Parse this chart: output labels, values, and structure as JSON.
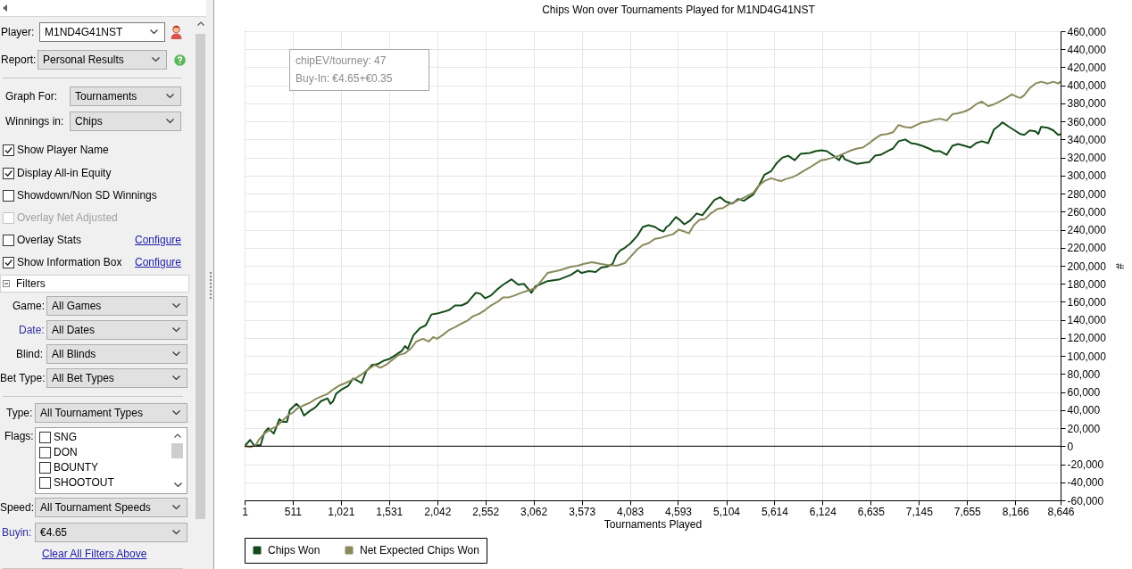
{
  "chart_data": [
    {
      "type": "other",
      "annotations": [
        "Player:",
        "M1ND4G41NST",
        "Report:",
        "Personal Results",
        "Graph For:",
        "Tournaments",
        "Winnings in:",
        "Chips",
        "Show Player Name",
        "Display All-in Equity",
        "Showdown/Non SD Winnings",
        "Overlay Net Adjusted",
        "Overlay Stats",
        "Configure",
        "Show Information Box",
        "Configure",
        "Filters",
        "Game:",
        "All Games",
        "Date:",
        "All Dates",
        "Blind:",
        "All Blinds",
        "Bet Type:",
        "All Bet Types",
        "Type:",
        "All Tournament Types",
        "Flags:",
        "SNG",
        "DON",
        "BOUNTY",
        "SHOOTOUT",
        "Speed:",
        "All Tournament Speeds",
        "Buyin:",
        "€4.65",
        "Clear All Filters Above"
      ]
    },
    {
      "type": "line",
      "title": "Chips Won over Tournaments Played for M1ND4G41NST",
      "xlabel": "Tournaments Played",
      "ylabel": "#",
      "annotations": [
        "chipEV/tourney: 47",
        "Buy-In: €4.65+€0.35"
      ],
      "xlim": [
        1,
        8646
      ],
      "xticks": [
        1,
        511,
        {
          "value": 1021,
          "label": "1,021"
        },
        {
          "value": 1531,
          "label": "1,531"
        },
        {
          "value": 2042,
          "label": "2,042"
        },
        {
          "value": 2552,
          "label": "2,552"
        },
        {
          "value": 3062,
          "label": "3,062"
        },
        {
          "value": 3573,
          "label": "3,573"
        },
        {
          "value": 4083,
          "label": "4,083"
        },
        {
          "value": 4593,
          "label": "4,593"
        },
        {
          "value": 5104,
          "label": "5,104"
        },
        {
          "value": 5614,
          "label": "5,614"
        },
        {
          "value": 6124,
          "label": "6,124"
        },
        {
          "value": 6635,
          "label": "6,635"
        },
        {
          "value": 7145,
          "label": "7,145"
        },
        {
          "value": 7655,
          "label": "7,655"
        },
        {
          "value": 8166,
          "label": "8,166"
        },
        {
          "value": 8646,
          "label": "8,646"
        }
      ],
      "ylim": [
        -60000,
        460000
      ],
      "yticks": [
        {
          "value": -60000,
          "label": "-60,000"
        },
        {
          "value": -40000,
          "label": "-40,000"
        },
        {
          "value": -20000,
          "label": "-20,000"
        },
        0,
        {
          "value": 20000,
          "label": "20,000"
        },
        {
          "value": 40000,
          "label": "40,000"
        },
        {
          "value": 60000,
          "label": "60,000"
        },
        {
          "value": 80000,
          "label": "80,000"
        },
        {
          "value": 100000,
          "label": "100,000"
        },
        {
          "value": 120000,
          "label": "120,000"
        },
        {
          "value": 140000,
          "label": "140,000"
        },
        {
          "value": 160000,
          "label": "160,000"
        },
        {
          "value": 180000,
          "label": "180,000"
        },
        {
          "value": 200000,
          "label": "200,000"
        },
        {
          "value": 220000,
          "label": "220,000"
        },
        {
          "value": 240000,
          "label": "240,000"
        },
        {
          "value": 260000,
          "label": "260,000"
        },
        {
          "value": 280000,
          "label": "280,000"
        },
        {
          "value": 300000,
          "label": "300,000"
        },
        {
          "value": 320000,
          "label": "320,000"
        },
        {
          "value": 340000,
          "label": "340,000"
        },
        {
          "value": 360000,
          "label": "360,000"
        },
        {
          "value": 380000,
          "label": "380,000"
        },
        {
          "value": 400000,
          "label": "400,000"
        },
        {
          "value": 420000,
          "label": "420,000"
        },
        {
          "value": 440000,
          "label": "440,000"
        },
        {
          "value": 460000,
          "label": "460,000"
        }
      ],
      "grid": true,
      "legend": "bottom left",
      "ref_lines": [
        {
          "axis": "y",
          "value": 0,
          "color": "#000000"
        }
      ],
      "series": [
        {
          "name": "Chips Won",
          "color": "#154b1a",
          "x": [
            1,
            60,
            100,
            170,
            210,
            250,
            280,
            310,
            340,
            370,
            400,
            450,
            480,
            550,
            590,
            630,
            690,
            750,
            810,
            880,
            910,
            940,
            970,
            1030,
            1100,
            1150,
            1190,
            1240,
            1290,
            1350,
            1410,
            1480,
            1540,
            1600,
            1670,
            1700,
            1730,
            1790,
            1860,
            1920,
            1980,
            2040,
            2110,
            2170,
            2230,
            2300,
            2360,
            2450,
            2500,
            2550,
            2610,
            2680,
            2740,
            2830,
            2900,
            2960,
            3010,
            3040,
            3080,
            3210,
            3340,
            3460,
            3530,
            3570,
            3650,
            3720,
            3780,
            3840,
            3900,
            3940,
            3980,
            4030,
            4090,
            4160,
            4220,
            4280,
            4350,
            4390,
            4440,
            4470,
            4500,
            4570,
            4610,
            4660,
            4720,
            4790,
            4850,
            4910,
            4980,
            5040,
            5100,
            5170,
            5230,
            5290,
            5390,
            5450,
            5510,
            5580,
            5640,
            5700,
            5760,
            5830,
            5890,
            5990,
            6050,
            6110,
            6170,
            6240,
            6300,
            6330,
            6360,
            6430,
            6490,
            6550,
            6620,
            6680,
            6740,
            6810,
            6870,
            6930,
            7000,
            7060,
            7120,
            7180,
            7250,
            7310,
            7370,
            7440,
            7500,
            7560,
            7630,
            7690,
            7750,
            7810,
            7880,
            7940,
            8000,
            8030,
            8100,
            8160,
            8220,
            8260,
            8320,
            8380,
            8410,
            8440,
            8510,
            8570,
            8620,
            8646
          ],
          "values": [
            0,
            7000,
            1000,
            1000,
            15000,
            20000,
            17000,
            14000,
            22000,
            30000,
            27000,
            27000,
            40000,
            47000,
            43000,
            34000,
            39000,
            43000,
            50000,
            53000,
            47000,
            50000,
            58000,
            63000,
            67000,
            75000,
            73000,
            70000,
            83000,
            90000,
            91000,
            95000,
            97000,
            101000,
            106000,
            111000,
            108000,
            123000,
            131000,
            134000,
            146000,
            147000,
            149000,
            151000,
            156000,
            156000,
            159000,
            170000,
            169000,
            164000,
            167000,
            174000,
            179000,
            185000,
            179000,
            180000,
            174000,
            170000,
            177000,
            183000,
            185000,
            190000,
            195000,
            192000,
            194000,
            193000,
            198000,
            199000,
            202000,
            212000,
            217000,
            220000,
            225000,
            233000,
            243000,
            245000,
            243000,
            240000,
            238000,
            243000,
            245000,
            254000,
            251000,
            246000,
            250000,
            258000,
            256000,
            264000,
            273000,
            276000,
            271000,
            269000,
            274000,
            272000,
            279000,
            289000,
            301000,
            305000,
            314000,
            320000,
            322000,
            317000,
            324000,
            325000,
            327000,
            328000,
            327000,
            322000,
            317000,
            323000,
            318000,
            315000,
            313000,
            314000,
            315000,
            322000,
            323000,
            327000,
            330000,
            338000,
            340000,
            336000,
            335000,
            333000,
            330000,
            327000,
            327000,
            323000,
            333000,
            335000,
            333000,
            331000,
            336000,
            338000,
            336000,
            351000,
            356000,
            359000,
            354000,
            350000,
            346000,
            345000,
            350000,
            349000,
            346000,
            354000,
            353000,
            350000,
            345000,
            346000
          ]
        },
        {
          "name": "Net Expected Chips Won",
          "color": "#8a8a5c",
          "x": [
            1,
            60,
            120,
            150,
            210,
            280,
            340,
            400,
            470,
            510,
            560,
            620,
            690,
            750,
            810,
            880,
            940,
            1000,
            1070,
            1130,
            1190,
            1260,
            1320,
            1380,
            1440,
            1510,
            1570,
            1630,
            1700,
            1760,
            1820,
            1890,
            1950,
            2000,
            2040,
            2110,
            2170,
            2230,
            2300,
            2360,
            2420,
            2490,
            2550,
            2610,
            2680,
            2740,
            2800,
            2860,
            2930,
            2990,
            3050,
            3080,
            3150,
            3210,
            3340,
            3460,
            3530,
            3590,
            3680,
            3780,
            3840,
            3940,
            4030,
            4090,
            4160,
            4220,
            4280,
            4350,
            4410,
            4470,
            4540,
            4600,
            4660,
            4710,
            4760,
            4820,
            4880,
            4940,
            5010,
            5070,
            5130,
            5200,
            5260,
            5320,
            5390,
            5450,
            5510,
            5580,
            5640,
            5690,
            5730,
            5800,
            5860,
            5920,
            5990,
            6050,
            6110,
            6170,
            6240,
            6300,
            6360,
            6430,
            6490,
            6550,
            6620,
            6680,
            6740,
            6810,
            6870,
            6930,
            6990,
            7060,
            7120,
            7180,
            7250,
            7310,
            7370,
            7440,
            7500,
            7560,
            7630,
            7690,
            7750,
            7810,
            7880,
            7940,
            8000,
            8070,
            8130,
            8190,
            8220,
            8260,
            8320,
            8380,
            8440,
            8510,
            8570,
            8620,
            8646
          ],
          "values": [
            0,
            -1000,
            1000,
            7000,
            14000,
            19000,
            22000,
            28000,
            35000,
            37000,
            42000,
            45000,
            48000,
            52000,
            55000,
            58000,
            63000,
            67000,
            70000,
            73000,
            76000,
            81000,
            86000,
            90000,
            87000,
            91000,
            96000,
            101000,
            103000,
            108000,
            116000,
            119000,
            116000,
            121000,
            119000,
            124000,
            129000,
            132000,
            136000,
            139000,
            144000,
            147000,
            151000,
            156000,
            160000,
            165000,
            165000,
            167000,
            170000,
            172000,
            174000,
            175000,
            184000,
            192000,
            195000,
            199000,
            200000,
            202000,
            204000,
            202000,
            201000,
            200000,
            203000,
            210000,
            218000,
            223000,
            225000,
            230000,
            231000,
            233000,
            235000,
            240000,
            238000,
            236000,
            245000,
            251000,
            252000,
            258000,
            263000,
            264000,
            268000,
            271000,
            274000,
            277000,
            281000,
            289000,
            294000,
            297000,
            295000,
            294000,
            296000,
            298000,
            301000,
            305000,
            309000,
            313000,
            317000,
            318000,
            320000,
            322000,
            325000,
            328000,
            330000,
            331000,
            336000,
            341000,
            345000,
            346000,
            348000,
            356000,
            354000,
            353000,
            356000,
            359000,
            360000,
            362000,
            363000,
            361000,
            368000,
            369000,
            371000,
            374000,
            379000,
            382000,
            377000,
            379000,
            382000,
            386000,
            390000,
            387000,
            386000,
            389000,
            397000,
            402000,
            404000,
            402000,
            404000,
            402000,
            404000
          ]
        }
      ]
    }
  ]
}
